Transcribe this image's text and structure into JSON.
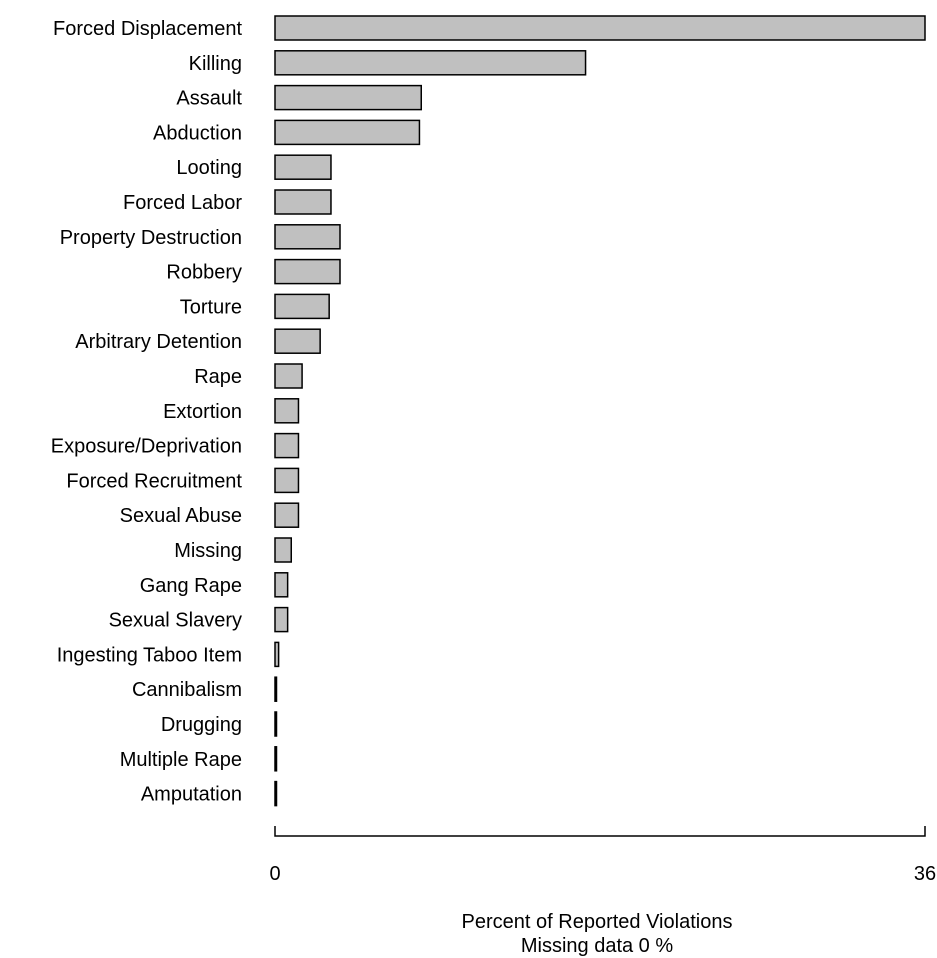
{
  "chart_data": {
    "type": "bar",
    "orientation": "horizontal",
    "categories": [
      "Forced Displacement",
      "Killing",
      "Assault",
      "Abduction",
      "Looting",
      "Forced Labor",
      "Property Destruction",
      "Robbery",
      "Torture",
      "Arbitrary Detention",
      "Rape",
      "Extortion",
      "Exposure/Deprivation",
      "Forced Recruitment",
      "Sexual Abuse",
      "Missing",
      "Gang Rape",
      "Sexual Slavery",
      "Ingesting Taboo Item",
      "Cannibalism",
      "Drugging",
      "Multiple Rape",
      "Amputation"
    ],
    "values": [
      36,
      17.2,
      8.1,
      8.0,
      3.1,
      3.1,
      3.6,
      3.6,
      3.0,
      2.5,
      1.5,
      1.3,
      1.3,
      1.3,
      1.3,
      0.9,
      0.7,
      0.7,
      0.2,
      0.05,
      0.05,
      0.05,
      0.05
    ],
    "xlim": [
      0,
      36
    ],
    "xticks": [
      0,
      36
    ],
    "xlabel": "Percent of Reported Violations",
    "subtitle": "Missing data 0 %",
    "title": "",
    "grid": false,
    "colors": {
      "bar_fill": "#c0c0c0",
      "bar_stroke": "#000000"
    }
  }
}
